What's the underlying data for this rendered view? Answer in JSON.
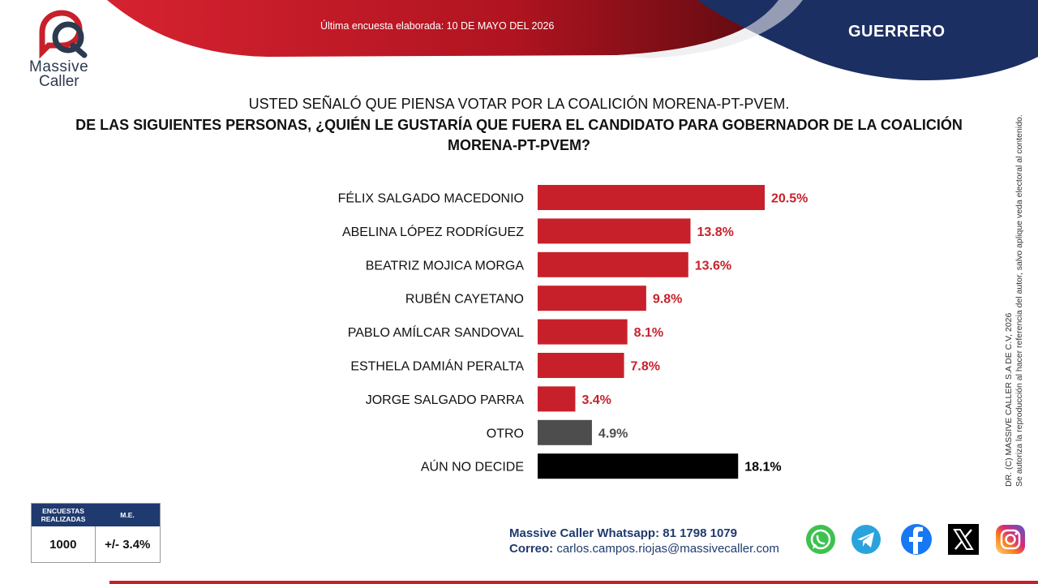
{
  "header": {
    "brand_line1": "Massive",
    "brand_line2": "Caller",
    "survey_date": "Última encuesta elaborada: 10 DE MAYO DEL 2026",
    "state": "GUERRERO"
  },
  "question": {
    "intro": "USTED SEÑALÓ QUE PIENSA VOTAR POR LA COALICIÓN MORENA-PT-PVEM.",
    "main": "DE LAS SIGUIENTES PERSONAS, ¿QUIÉN LE GUSTARÍA QUE FUERA EL CANDIDATO PARA GOBERNADOR DE LA COALICIÓN MORENA-PT-PVEM?"
  },
  "chart_data": {
    "type": "bar",
    "orientation": "horizontal",
    "categories": [
      "FÉLIX SALGADO MACEDONIO",
      "ABELINA LÓPEZ RODRÍGUEZ",
      "BEATRIZ MOJICA MORGA",
      "RUBÉN CAYETANO",
      "PABLO AMÍLCAR SANDOVAL",
      "ESTHELA DAMIÁN PERALTA",
      "JORGE SALGADO PARRA",
      "OTRO",
      "AÚN NO DECIDE"
    ],
    "values": [
      20.5,
      13.8,
      13.6,
      9.8,
      8.1,
      7.8,
      3.4,
      4.9,
      18.1
    ],
    "value_labels": [
      "20.5%",
      "13.8%",
      "13.6%",
      "9.8%",
      "8.1%",
      "7.8%",
      "3.4%",
      "4.9%",
      "18.1%"
    ],
    "colors": [
      "#c8202b",
      "#c8202b",
      "#c8202b",
      "#c8202b",
      "#c8202b",
      "#c8202b",
      "#c8202b",
      "#4d4d4d",
      "#000000"
    ],
    "label_colors": [
      "#c8202b",
      "#c8202b",
      "#c8202b",
      "#c8202b",
      "#c8202b",
      "#c8202b",
      "#c8202b",
      "#4d4d4d",
      "#000000"
    ],
    "grid": false,
    "legend": "none",
    "xlim": [
      0,
      20.5
    ]
  },
  "side_note": {
    "line1": "DR. (C) MASSIVE CALLER S.A DE C.V, 2026",
    "line2": "Se autoriza la reproducción al hacer referencia del autor, salvo aplique veda electoral al contenido."
  },
  "stats": {
    "header_surveys": "ENCUESTAS REALIZADAS",
    "header_me": "M.E.",
    "surveys": "1000",
    "margin_error": "+/- 3.4%"
  },
  "contact": {
    "whatsapp": "Massive Caller Whatsapp: 81 1798 1079",
    "email_label": "Correo:",
    "email": "carlos.campos.riojas@massivecaller.com"
  },
  "social": [
    "whatsapp-icon",
    "telegram-icon",
    "facebook-icon",
    "x-icon",
    "instagram-icon"
  ],
  "colors": {
    "brand_red": "#c8202b",
    "brand_navy": "#1f3a6e"
  }
}
